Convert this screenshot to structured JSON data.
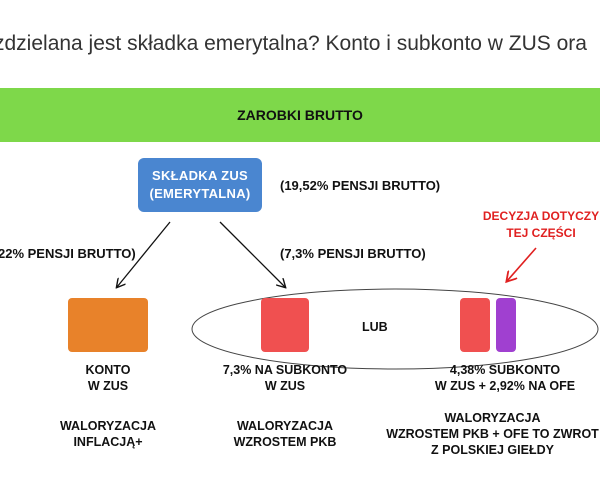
{
  "title": "zdzielana jest składka emerytalna? Konto i subkonto w ZUS ora",
  "banner": {
    "label": "ZAROBKI BRUTTO"
  },
  "contribution": {
    "box_line1": "SKŁADKA ZUS",
    "box_line2": "(EMERYTALNA)",
    "percent": "(19,52% PENSJI BRUTTO)"
  },
  "branches": {
    "left_percent": "22% PENSJI BRUTTO)",
    "right_percent": "(7,3% PENSJI BRUTTO)"
  },
  "decision_note": {
    "line1": "DECYZJA DOTYCZY",
    "line2": "TEJ CZĘŚCI"
  },
  "or_label": "LUB",
  "accounts": [
    {
      "line1": "KONTO",
      "line2": "W ZUS",
      "val_line1": "WALORYZACJA",
      "val_line2": "INFLACJĄ+",
      "val_line3": ""
    },
    {
      "line1": "7,3% NA SUBKONTO",
      "line2": "W ZUS",
      "val_line1": "WALORYZACJA",
      "val_line2": "WZROSTEM PKB",
      "val_line3": ""
    },
    {
      "line1": "4,38% SUBKONTO",
      "line2": "W ZUS + 2,92% NA OFE",
      "val_line1": "WALORYZACJA",
      "val_line2": "WZROSTEM PKB + OFE TO ZWROT",
      "val_line3": "Z POLSKIEJ GIEŁDY"
    }
  ],
  "colors": {
    "banner": "#7ed84a",
    "zus_box": "#4a86d0",
    "orange": "#e8822a",
    "red": "#f05050",
    "purple": "#a040d0",
    "annotation": "#e02020"
  }
}
